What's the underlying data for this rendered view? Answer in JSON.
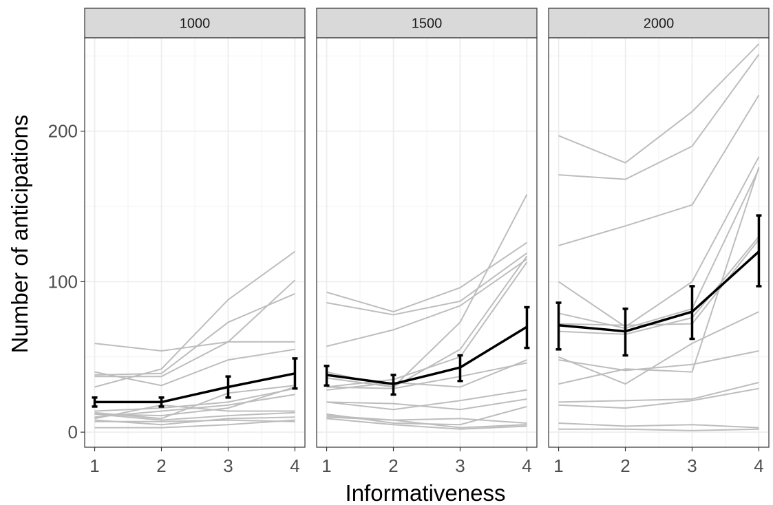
{
  "chart_data": {
    "type": "line",
    "xlabel": "Informativeness",
    "ylabel": "Number of anticipations",
    "x": [
      1,
      2,
      3,
      4
    ],
    "xlim": [
      0.85,
      4.15
    ],
    "ylim": [
      -10,
      262
    ],
    "yticks": [
      0,
      100,
      200
    ],
    "grid": true,
    "panels": [
      {
        "label": "1000",
        "mean": [
          20,
          20,
          30,
          39
        ],
        "error_low": [
          17,
          17,
          23,
          29
        ],
        "error_high": [
          23,
          23,
          37,
          49
        ],
        "participants": [
          [
            59,
            54,
            60,
            60
          ],
          [
            40,
            31,
            48,
            55
          ],
          [
            30,
            42,
            88,
            120
          ],
          [
            38,
            39,
            73,
            92
          ],
          [
            37,
            37,
            60,
            101
          ],
          [
            14,
            16,
            20,
            29
          ],
          [
            13,
            9,
            26,
            31
          ],
          [
            12,
            11,
            16,
            30
          ],
          [
            10,
            14,
            18,
            25
          ],
          [
            9,
            18,
            14,
            14
          ],
          [
            12,
            8,
            11,
            13
          ],
          [
            8,
            5,
            9,
            10
          ],
          [
            7,
            7,
            8,
            7
          ],
          [
            3,
            3,
            5,
            8
          ]
        ]
      },
      {
        "label": "1500",
        "mean": [
          38,
          32,
          43,
          70
        ],
        "error_low": [
          31,
          25,
          34,
          56
        ],
        "error_high": [
          44,
          38,
          51,
          83
        ],
        "participants": [
          [
            93,
            80,
            96,
            126
          ],
          [
            86,
            78,
            87,
            119
          ],
          [
            57,
            68,
            84,
            115
          ],
          [
            40,
            30,
            73,
            158
          ],
          [
            36,
            30,
            55,
            117
          ],
          [
            30,
            35,
            50,
            113
          ],
          [
            28,
            33,
            30,
            48
          ],
          [
            30,
            29,
            37,
            46
          ],
          [
            20,
            15,
            21,
            28
          ],
          [
            20,
            19,
            15,
            22
          ],
          [
            12,
            6,
            5,
            17
          ],
          [
            11,
            8,
            9,
            6
          ],
          [
            9,
            5,
            2,
            4
          ],
          [
            10,
            8,
            3,
            5
          ]
        ]
      },
      {
        "label": "2000",
        "mean": [
          71,
          67,
          80,
          120
        ],
        "error_low": [
          55,
          51,
          62,
          97
        ],
        "error_high": [
          86,
          82,
          97,
          144
        ],
        "participants": [
          [
            197,
            179,
            213,
            258
          ],
          [
            171,
            168,
            190,
            251
          ],
          [
            124,
            137,
            151,
            224
          ],
          [
            100,
            70,
            100,
            183
          ],
          [
            79,
            69,
            82,
            175
          ],
          [
            72,
            71,
            72,
            128
          ],
          [
            67,
            65,
            76,
            130
          ],
          [
            50,
            32,
            59,
            80
          ],
          [
            48,
            41,
            45,
            54
          ],
          [
            32,
            42,
            40,
            176
          ],
          [
            20,
            21,
            22,
            33
          ],
          [
            18,
            16,
            21,
            29
          ],
          [
            6,
            4,
            5,
            3
          ],
          [
            2,
            2,
            1,
            2
          ]
        ]
      }
    ]
  }
}
